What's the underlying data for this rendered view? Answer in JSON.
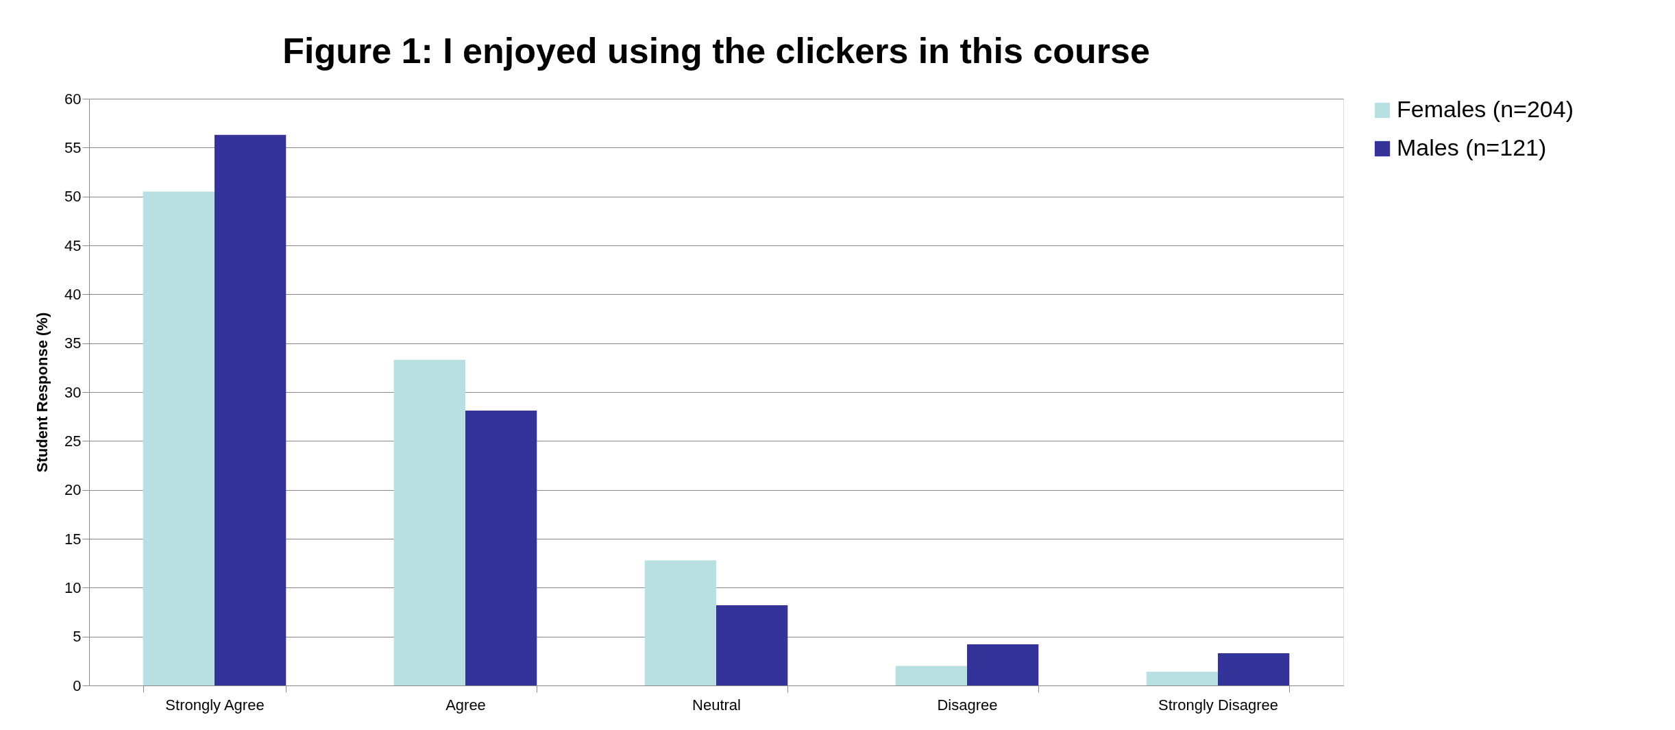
{
  "chart_data": {
    "type": "bar",
    "title": "Figure 1:  I enjoyed using the clickers in this course",
    "ylabel": "Student Response (%)",
    "categories": [
      "Strongly Agree",
      "Agree",
      "Neutral",
      "Disagree",
      "Strongly Disagree"
    ],
    "series": [
      {
        "name": "Females (n=204)",
        "color": "#b8e0e3",
        "values": [
          50.5,
          33.3,
          12.8,
          2.0,
          1.4
        ]
      },
      {
        "name": "Males (n=121)",
        "color": "#333399",
        "values": [
          56.3,
          28.1,
          8.2,
          4.2,
          3.3
        ]
      }
    ],
    "ylim": [
      0,
      60
    ],
    "yticks": [
      0,
      5,
      10,
      15,
      20,
      25,
      30,
      35,
      40,
      45,
      50,
      55,
      60
    ],
    "grid": "y",
    "legend": "right"
  }
}
